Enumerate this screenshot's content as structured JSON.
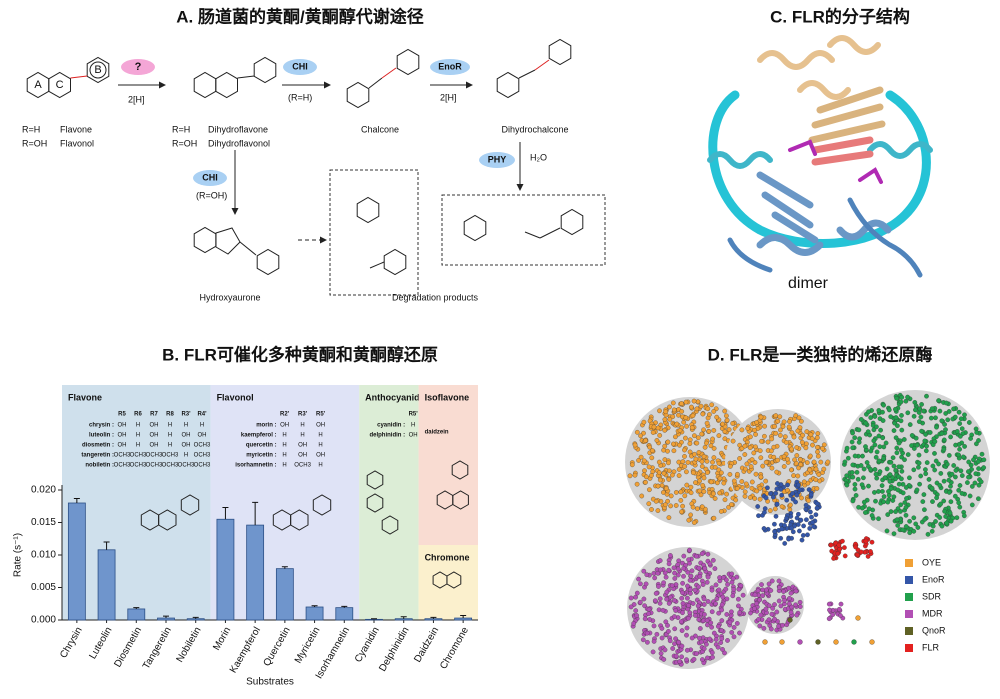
{
  "panel_a": {
    "title": "A. 肠道菌的黄酮/黄酮醇代谢途径",
    "rings": [
      "A",
      "C",
      "B"
    ],
    "enzymes": [
      "?",
      "CHI",
      "EnoR",
      "PHY",
      "CHI"
    ],
    "conditions": [
      "2[H]",
      "(R=H)",
      "2[H]",
      "H₂O",
      "(R=OH)"
    ],
    "compounds": [
      {
        "r": "R=H",
        "name": "Flavone"
      },
      {
        "r": "R=OH",
        "name": "Flavonol"
      },
      {
        "r": "R=H",
        "name": "Dihydroflavone"
      },
      {
        "r": "R=OH",
        "name": "Dihydroflavonol"
      }
    ],
    "names": [
      "Chalcone",
      "Dihydrochalcone",
      "Hydroxyaurone",
      "Degradation products"
    ]
  },
  "chart_data": {
    "type": "bar",
    "title": "B. FLR可催化多种黄酮和黄酮醇还原",
    "xlabel": "Substrates",
    "ylabel": "Rate (s⁻¹)",
    "categories": [
      "Chrysin",
      "Luteolin",
      "Diosmetin",
      "Tangeretin",
      "Nobiletin",
      "Morin",
      "Kaempferol",
      "Quercetin",
      "Myricetin",
      "Isorhamnetin",
      "Cyanidin",
      "Delphinidin",
      "Daidzein",
      "Chromone"
    ],
    "values": [
      0.018,
      0.0108,
      0.0017,
      0.0003,
      0.0002,
      0.0155,
      0.0146,
      0.0079,
      0.002,
      0.0019,
      0.0001,
      0.0002,
      0.0002,
      0.0003
    ],
    "errors": [
      0.0007,
      0.0012,
      0.0002,
      0.0003,
      0.0002,
      0.0018,
      0.0035,
      0.0003,
      0.0002,
      0.0002,
      0.0001,
      0.0003,
      0.0002,
      0.0004
    ],
    "color": "#6f95cc",
    "ylim": [
      0,
      0.02
    ],
    "yticks": [
      {
        "value": 0,
        "label": "0.000"
      },
      {
        "value": 0.005,
        "label": "0.005"
      },
      {
        "value": 0.01,
        "label": "0.010"
      },
      {
        "value": 0.015,
        "label": "0.015"
      },
      {
        "value": 0.02,
        "label": "0.020"
      }
    ],
    "groups": [
      {
        "name": "Flavone",
        "color": "#cfe0ec",
        "headers": [
          "R5",
          "R6",
          "R7",
          "R8",
          "R3'",
          "R4'"
        ],
        "rows": [
          [
            "chrysin :",
            "OH",
            "H",
            "OH",
            "H",
            "H",
            "H"
          ],
          [
            "luteolin :",
            "OH",
            "H",
            "OH",
            "H",
            "OH",
            "OH"
          ],
          [
            "diosmetin :",
            "OH",
            "H",
            "OH",
            "H",
            "OH",
            "OCH3"
          ],
          [
            "tangeretin :",
            "OCH3",
            "OCH3",
            "OCH3",
            "OCH3",
            "H",
            "OCH3"
          ],
          [
            "nobiletin :",
            "OCH3",
            "OCH3",
            "OCH3",
            "OCH3",
            "OCH3",
            "OCH3"
          ]
        ]
      },
      {
        "name": "Flavonol",
        "color": "#dfe3f6",
        "headers": [
          "R2'",
          "R3'",
          "R5'"
        ],
        "rows": [
          [
            "morin :",
            "OH",
            "H",
            "OH"
          ],
          [
            "kaempferol :",
            "H",
            "H",
            "H"
          ],
          [
            "quercetin :",
            "H",
            "OH",
            "H"
          ],
          [
            "myricetin :",
            "H",
            "OH",
            "OH"
          ],
          [
            "isorhamnetin :",
            "H",
            "OCH3",
            "H"
          ]
        ]
      },
      {
        "name": "Anthocyanidin",
        "color": "#dcedd6",
        "headers": [
          "R5'"
        ],
        "rows": [
          [
            "cyanidin :",
            "H"
          ],
          [
            "delphinidin :",
            "OH"
          ]
        ]
      },
      {
        "name": "Isoflavone",
        "color": "#f9dcd2",
        "headers": [],
        "rows": [
          [
            "daidzein"
          ]
        ]
      },
      {
        "name": "Chromone",
        "color": "#fbf0cd",
        "headers": [],
        "rows": []
      }
    ]
  },
  "panel_c": {
    "title": "C. FLR的分子结构",
    "label": "dimer"
  },
  "panel_d": {
    "title": "D. FLR是一类独特的烯还原酶",
    "legend": [
      {
        "name": "OYE",
        "color": "#f0a035"
      },
      {
        "name": "EnoR",
        "color": "#3456a8"
      },
      {
        "name": "SDR",
        "color": "#21a04c"
      },
      {
        "name": "MDR",
        "color": "#b24fb4"
      },
      {
        "name": "QnoR",
        "color": "#5f6125"
      },
      {
        "name": "FLR",
        "color": "#e3211f"
      }
    ]
  }
}
